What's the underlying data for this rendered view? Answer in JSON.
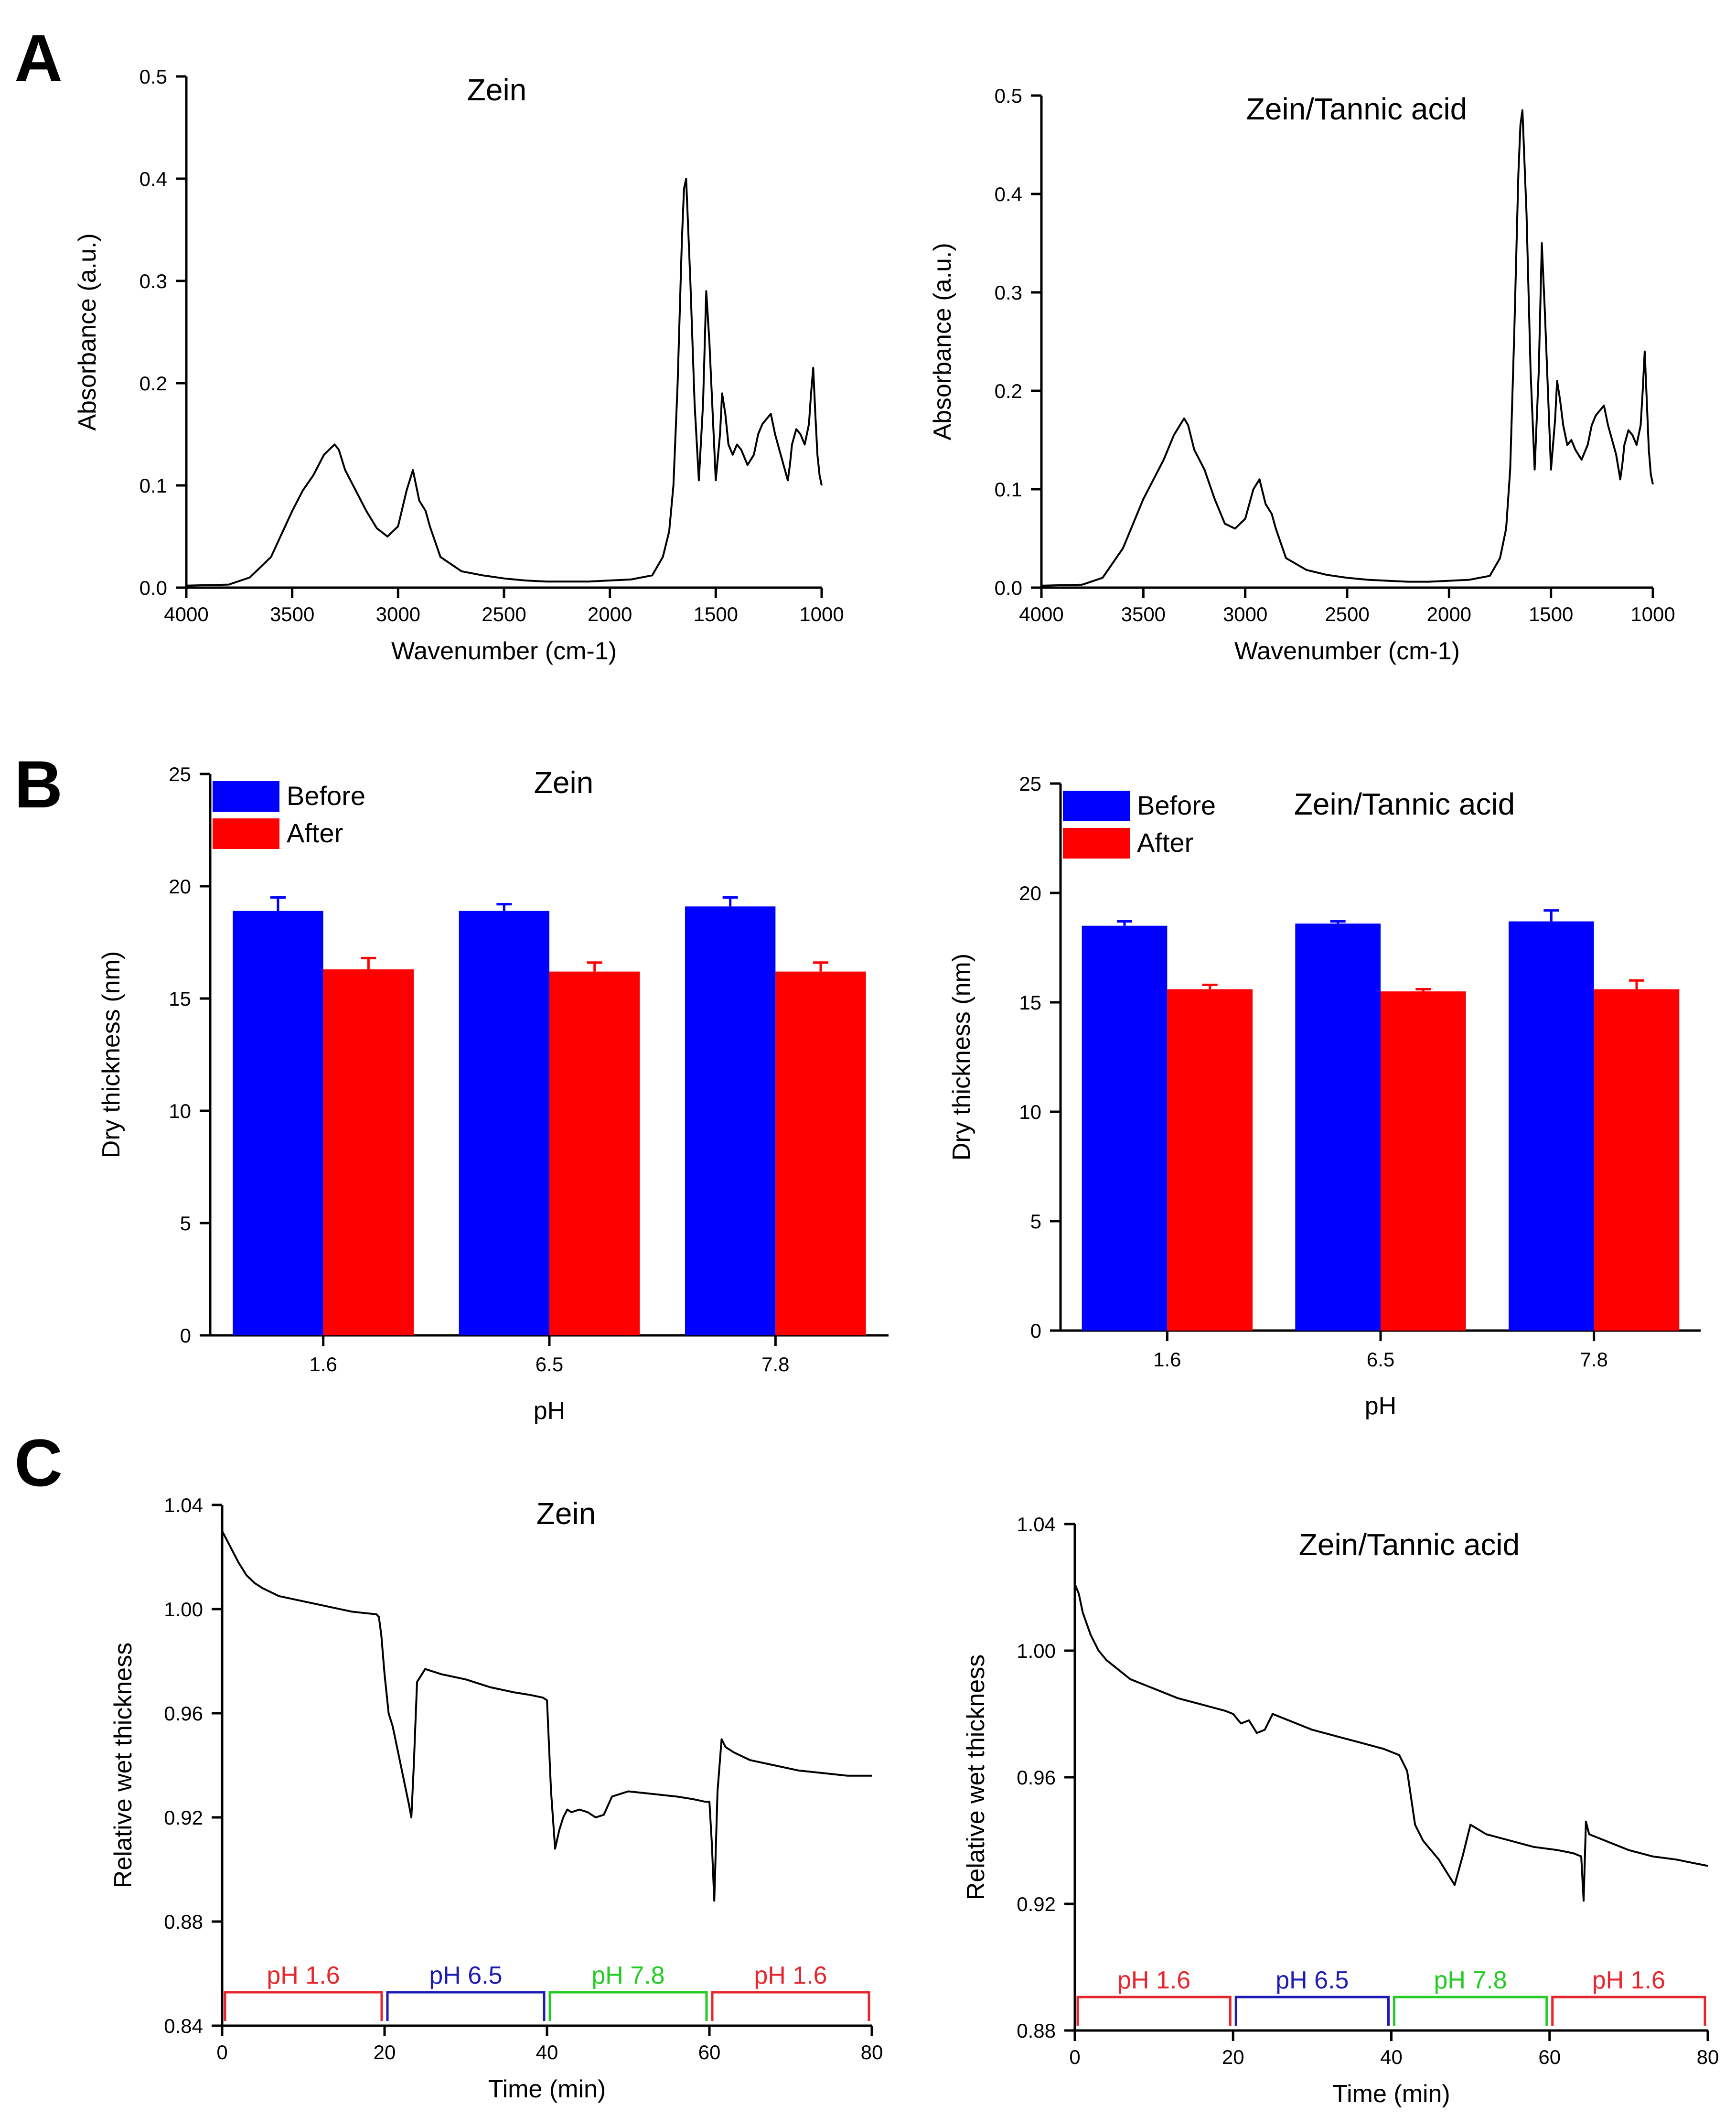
{
  "panels": [
    {
      "label": "A"
    },
    {
      "label": "B"
    },
    {
      "label": "C"
    }
  ],
  "colors": {
    "before": "#0000ff",
    "after": "#ff0000",
    "ph16": "#e8252c",
    "ph65": "#1c1cb4",
    "ph78": "#22cc22"
  },
  "chart_data": [
    {
      "id": "A1",
      "type": "line",
      "title": "Zein",
      "xlabel": "Wavenumber (cm-1)",
      "ylabel": "Absorbance (a.u.)",
      "xlim": [
        4000,
        1000
      ],
      "ylim": [
        0,
        0.5
      ],
      "xticks": [
        4000,
        3500,
        3000,
        2500,
        2000,
        1500,
        1000
      ],
      "yticks": [
        0.0,
        0.1,
        0.2,
        0.3,
        0.4,
        0.5
      ],
      "ytick_labels": [
        "0.0",
        "0.1",
        "0.2",
        "0.3",
        "0.4",
        "0.5"
      ],
      "x": [
        4000,
        3800,
        3700,
        3600,
        3500,
        3450,
        3400,
        3350,
        3300,
        3280,
        3250,
        3200,
        3150,
        3100,
        3050,
        3000,
        2960,
        2930,
        2900,
        2870,
        2850,
        2800,
        2700,
        2600,
        2500,
        2400,
        2300,
        2200,
        2100,
        2000,
        1900,
        1800,
        1750,
        1720,
        1700,
        1680,
        1660,
        1650,
        1640,
        1620,
        1600,
        1580,
        1560,
        1545,
        1530,
        1500,
        1480,
        1470,
        1455,
        1440,
        1420,
        1400,
        1380,
        1350,
        1320,
        1300,
        1280,
        1260,
        1240,
        1220,
        1200,
        1180,
        1160,
        1150,
        1140,
        1120,
        1100,
        1080,
        1060,
        1050,
        1040,
        1030,
        1020,
        1010,
        1000
      ],
      "y": [
        0.002,
        0.003,
        0.01,
        0.03,
        0.075,
        0.095,
        0.11,
        0.13,
        0.14,
        0.135,
        0.115,
        0.095,
        0.075,
        0.058,
        0.05,
        0.06,
        0.095,
        0.115,
        0.085,
        0.075,
        0.06,
        0.03,
        0.016,
        0.012,
        0.009,
        0.007,
        0.006,
        0.006,
        0.006,
        0.007,
        0.008,
        0.012,
        0.03,
        0.055,
        0.1,
        0.2,
        0.34,
        0.39,
        0.4,
        0.3,
        0.18,
        0.105,
        0.18,
        0.29,
        0.24,
        0.105,
        0.15,
        0.19,
        0.17,
        0.14,
        0.13,
        0.14,
        0.135,
        0.12,
        0.13,
        0.15,
        0.16,
        0.165,
        0.17,
        0.15,
        0.135,
        0.12,
        0.105,
        0.12,
        0.14,
        0.155,
        0.15,
        0.14,
        0.16,
        0.19,
        0.215,
        0.17,
        0.13,
        0.11,
        0.1
      ]
    },
    {
      "id": "A2",
      "type": "line",
      "title": "Zein/Tannic acid",
      "xlabel": "Wavenumber (cm-1)",
      "ylabel": "Absorbance (a.u.)",
      "xlim": [
        4000,
        1000
      ],
      "ylim": [
        0,
        0.5
      ],
      "xticks": [
        4000,
        3500,
        3000,
        2500,
        2000,
        1500,
        1000
      ],
      "yticks": [
        0.0,
        0.1,
        0.2,
        0.3,
        0.4,
        0.5
      ],
      "ytick_labels": [
        "0.0",
        "0.1",
        "0.2",
        "0.3",
        "0.4",
        "0.5"
      ],
      "x": [
        4000,
        3800,
        3700,
        3600,
        3500,
        3450,
        3400,
        3350,
        3300,
        3280,
        3250,
        3200,
        3150,
        3100,
        3050,
        3000,
        2960,
        2930,
        2900,
        2870,
        2850,
        2800,
        2700,
        2600,
        2500,
        2400,
        2300,
        2200,
        2100,
        2000,
        1900,
        1800,
        1750,
        1720,
        1700,
        1680,
        1660,
        1650,
        1640,
        1620,
        1600,
        1580,
        1560,
        1545,
        1530,
        1500,
        1480,
        1470,
        1455,
        1440,
        1420,
        1400,
        1380,
        1350,
        1320,
        1300,
        1280,
        1260,
        1240,
        1220,
        1200,
        1180,
        1160,
        1150,
        1140,
        1120,
        1100,
        1080,
        1060,
        1050,
        1040,
        1030,
        1020,
        1010,
        1000
      ],
      "y": [
        0.002,
        0.003,
        0.01,
        0.04,
        0.09,
        0.11,
        0.13,
        0.155,
        0.172,
        0.165,
        0.14,
        0.12,
        0.09,
        0.065,
        0.06,
        0.07,
        0.1,
        0.11,
        0.085,
        0.075,
        0.06,
        0.03,
        0.018,
        0.013,
        0.01,
        0.008,
        0.007,
        0.006,
        0.006,
        0.007,
        0.008,
        0.012,
        0.03,
        0.06,
        0.12,
        0.26,
        0.42,
        0.47,
        0.485,
        0.38,
        0.22,
        0.12,
        0.22,
        0.35,
        0.28,
        0.12,
        0.17,
        0.21,
        0.19,
        0.165,
        0.145,
        0.15,
        0.14,
        0.13,
        0.145,
        0.165,
        0.175,
        0.18,
        0.185,
        0.165,
        0.15,
        0.135,
        0.11,
        0.125,
        0.145,
        0.16,
        0.155,
        0.145,
        0.165,
        0.2,
        0.24,
        0.19,
        0.14,
        0.115,
        0.105
      ]
    },
    {
      "id": "B1",
      "type": "bar",
      "title": "Zein",
      "xlabel": "pH",
      "ylabel": "Dry thickness (nm)",
      "ylim": [
        0,
        25
      ],
      "yticks": [
        0,
        5,
        10,
        15,
        20,
        25
      ],
      "categories": [
        "1.6",
        "6.5",
        "7.8"
      ],
      "series": [
        {
          "name": "Before",
          "values": [
            18.9,
            18.9,
            19.1
          ],
          "errors": [
            0.6,
            0.3,
            0.4
          ]
        },
        {
          "name": "After",
          "values": [
            16.3,
            16.2,
            16.2
          ],
          "errors": [
            0.5,
            0.4,
            0.4
          ]
        }
      ],
      "legend": "top-left"
    },
    {
      "id": "B2",
      "type": "bar",
      "title": "Zein/Tannic acid",
      "xlabel": "pH",
      "ylabel": "Dry thickness (nm)",
      "ylim": [
        0,
        25
      ],
      "yticks": [
        0,
        5,
        10,
        15,
        20,
        25
      ],
      "categories": [
        "1.6",
        "6.5",
        "7.8"
      ],
      "series": [
        {
          "name": "Before",
          "values": [
            18.5,
            18.6,
            18.7
          ],
          "errors": [
            0.2,
            0.1,
            0.5
          ]
        },
        {
          "name": "After",
          "values": [
            15.6,
            15.5,
            15.6
          ],
          "errors": [
            0.2,
            0.1,
            0.4
          ]
        }
      ],
      "legend": "top-left"
    },
    {
      "id": "C1",
      "type": "line",
      "title": "Zein",
      "xlabel": "Time (min)",
      "ylabel": "Relative wet thickness",
      "xlim": [
        0,
        80
      ],
      "ylim": [
        0.84,
        1.04
      ],
      "xticks": [
        0,
        20,
        40,
        60,
        80
      ],
      "yticks": [
        0.84,
        0.88,
        0.92,
        0.96,
        1.0,
        1.04
      ],
      "ytick_labels": [
        "0.84",
        "0.88",
        "0.92",
        "0.96",
        "1.00",
        "1.04"
      ],
      "x": [
        0,
        0.5,
        1,
        2,
        3,
        4,
        5,
        7,
        10,
        13,
        16,
        19,
        19.3,
        19.6,
        20,
        20.5,
        21,
        22,
        23,
        23.3,
        23.6,
        24,
        25,
        27,
        30,
        33,
        36,
        38,
        39.5,
        40,
        40.5,
        41,
        41.5,
        42,
        42.5,
        43,
        44,
        45,
        46,
        47,
        48,
        50,
        53,
        56,
        58,
        59.5,
        60,
        60.3,
        60.6,
        61,
        61.5,
        62,
        63,
        65,
        68,
        71,
        74,
        77,
        80
      ],
      "y": [
        1.03,
        1.027,
        1.024,
        1.018,
        1.013,
        1.01,
        1.008,
        1.005,
        1.003,
        1.001,
        0.999,
        0.998,
        0.997,
        0.99,
        0.975,
        0.96,
        0.955,
        0.94,
        0.925,
        0.92,
        0.94,
        0.972,
        0.977,
        0.975,
        0.973,
        0.97,
        0.968,
        0.967,
        0.966,
        0.965,
        0.93,
        0.908,
        0.915,
        0.92,
        0.923,
        0.922,
        0.923,
        0.922,
        0.92,
        0.921,
        0.928,
        0.93,
        0.929,
        0.928,
        0.927,
        0.926,
        0.926,
        0.91,
        0.888,
        0.93,
        0.95,
        0.947,
        0.945,
        0.942,
        0.94,
        0.938,
        0.937,
        0.936,
        0.936
      ]
    },
    {
      "id": "C2",
      "type": "line",
      "title": "Zein/Tannic acid",
      "xlabel": "Time (min)",
      "ylabel": "Relative wet thickness",
      "xlim": [
        0,
        80
      ],
      "ylim": [
        0.88,
        1.04
      ],
      "xticks": [
        0,
        20,
        40,
        60,
        80
      ],
      "yticks": [
        0.88,
        0.92,
        0.96,
        1.0,
        1.04
      ],
      "ytick_labels": [
        "0.88",
        "0.92",
        "0.96",
        "1.00",
        "1.04"
      ],
      "x": [
        0,
        0.5,
        1,
        2,
        3,
        4,
        5,
        7,
        10,
        13,
        16,
        19,
        20,
        21,
        22,
        23,
        24,
        25,
        26,
        28,
        30,
        33,
        36,
        39,
        41,
        42,
        43,
        44,
        45,
        46,
        47,
        48,
        49,
        50,
        52,
        55,
        58,
        61,
        63,
        64,
        64.3,
        64.6,
        65,
        67,
        70,
        73,
        76,
        78,
        80
      ],
      "y": [
        1.021,
        1.018,
        1.012,
        1.005,
        1.0,
        0.997,
        0.995,
        0.991,
        0.988,
        0.985,
        0.983,
        0.981,
        0.98,
        0.977,
        0.978,
        0.974,
        0.975,
        0.98,
        0.979,
        0.977,
        0.975,
        0.973,
        0.971,
        0.969,
        0.967,
        0.962,
        0.945,
        0.94,
        0.937,
        0.934,
        0.93,
        0.926,
        0.935,
        0.945,
        0.942,
        0.94,
        0.938,
        0.937,
        0.936,
        0.935,
        0.921,
        0.946,
        0.942,
        0.94,
        0.937,
        0.935,
        0.934,
        0.933,
        0.932
      ],
      "segments": []
    }
  ],
  "ph_bars": [
    {
      "label": "pH 1.6",
      "start": 0,
      "end": 20,
      "color": "#e8252c"
    },
    {
      "label": "pH 6.5",
      "start": 20,
      "end": 40,
      "color": "#1c1cb4"
    },
    {
      "label": "pH 7.8",
      "start": 40,
      "end": 60,
      "color": "#22cc22"
    },
    {
      "label": "pH 1.6",
      "start": 60,
      "end": 80,
      "color": "#e8252c"
    }
  ]
}
